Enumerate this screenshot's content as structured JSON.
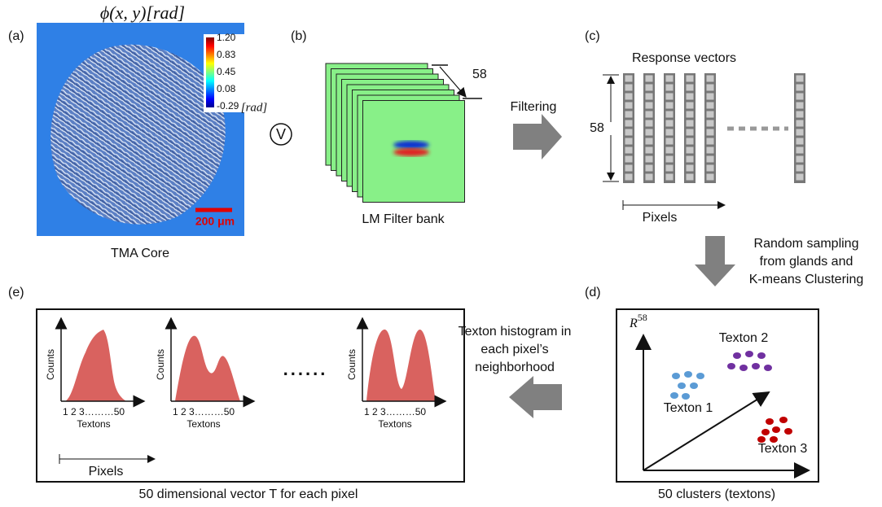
{
  "panels": {
    "a": {
      "label": "(a)",
      "title": "ϕ(x, y)[rad]",
      "colorbar": {
        "ticks": [
          "1.20",
          "0.83",
          "0.45",
          "0.08",
          "-0.29"
        ],
        "unit": "[rad]"
      },
      "scale_bar": "200 μm",
      "caption": "TMA Core"
    },
    "operator": "V",
    "b": {
      "label": "(b)",
      "depth": "58",
      "caption": "LM Filter bank"
    },
    "filtering": "Filtering",
    "c": {
      "label": "(c)",
      "title": "Response vectors",
      "length": "58",
      "axis": "Pixels"
    },
    "sampling": {
      "lines": [
        "Random sampling",
        "from glands and",
        "K-means Clustering"
      ]
    },
    "d": {
      "label": "(d)",
      "space": {
        "base": "R",
        "exponent": "58"
      },
      "clusters": [
        "Texton 1",
        "Texton 2",
        "Texton 3"
      ],
      "caption": "50 clusters (textons)"
    },
    "histogram_step": {
      "lines": [
        "Texton histogram in",
        "each pixel’s",
        "neighborhood"
      ]
    },
    "e": {
      "label": "(e)",
      "histograms": [
        {
          "y_label": "Counts",
          "x_ticks": "1 2 3………50",
          "x_label": "Textons"
        },
        {
          "y_label": "Counts",
          "x_ticks": "1 2 3………50",
          "x_label": "Textons"
        },
        {
          "y_label": "Counts",
          "x_ticks": "1 2 3………50",
          "x_label": "Textons"
        }
      ],
      "ellipsis": "......",
      "axis": "Pixels",
      "caption": "50 dimensional vector T for each pixel"
    }
  }
}
